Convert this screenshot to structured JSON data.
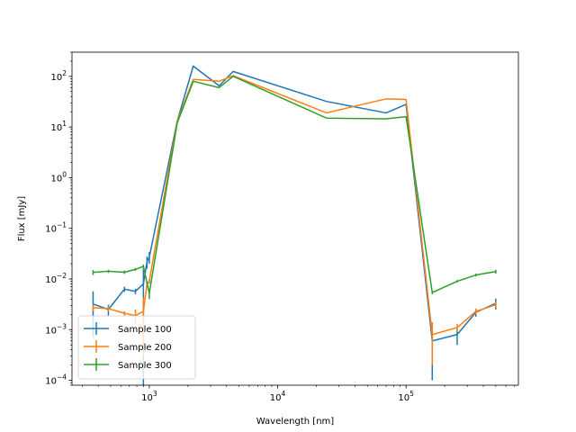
{
  "chart_data": {
    "type": "line",
    "title": "",
    "xlabel": "Wavelength [nm]",
    "ylabel": "Flux [mJy]",
    "xscale": "log",
    "yscale": "log",
    "xlim": [
      250,
      750000
    ],
    "ylim": [
      8e-05,
      300
    ],
    "x_ticks": [
      {
        "value": 1000,
        "base": "10",
        "exp": "3"
      },
      {
        "value": 10000,
        "base": "10",
        "exp": "4"
      },
      {
        "value": 100000,
        "base": "10",
        "exp": "5"
      }
    ],
    "y_ticks": [
      {
        "value": 0.0001,
        "base": "10",
        "exp": "−4"
      },
      {
        "value": 0.001,
        "base": "10",
        "exp": "−3"
      },
      {
        "value": 0.01,
        "base": "10",
        "exp": "−2"
      },
      {
        "value": 0.1,
        "base": "10",
        "exp": "−1"
      },
      {
        "value": 1,
        "base": "10",
        "exp": "0"
      },
      {
        "value": 10,
        "base": "10",
        "exp": "1"
      },
      {
        "value": 100,
        "base": "10",
        "exp": "2"
      }
    ],
    "grid": false,
    "legend_position": "lower-left",
    "series": [
      {
        "name": "Sample 100",
        "color": "#1f77b4",
        "x": [
          365,
          480,
          640,
          780,
          900,
          960,
          1000,
          1650,
          2200,
          3500,
          4500,
          24000,
          70000,
          100000,
          160000,
          250000,
          350000,
          500000
        ],
        "y": [
          0.0032,
          0.0025,
          0.0063,
          0.0057,
          0.008,
          0.022,
          0.027,
          13,
          160,
          65,
          125,
          32,
          19,
          28,
          0.0006,
          0.0008,
          0.0022,
          0.0033
        ],
        "err": [
          0.0025,
          0.0006,
          0.0007,
          0.0007,
          0.008,
          0.006,
          0.007,
          0,
          0,
          0,
          0,
          0,
          0,
          0,
          0.0005,
          0.0003,
          0.0004,
          0.0008
        ]
      },
      {
        "name": "Sample 200",
        "color": "#ff7f0e",
        "x": [
          365,
          480,
          640,
          780,
          900,
          960,
          1000,
          1650,
          2200,
          3500,
          4500,
          24000,
          70000,
          100000,
          160000,
          250000,
          350000,
          500000
        ],
        "y": [
          0.0027,
          0.0026,
          0.0021,
          0.0019,
          0.0023,
          0.008,
          0.009,
          13,
          87,
          80,
          103,
          19,
          36,
          35,
          0.0008,
          0.0011,
          0.0023,
          0.0031
        ],
        "err": [
          0.0004,
          0.0003,
          0.0002,
          0.0006,
          0.002,
          0.001,
          0.001,
          0,
          0,
          0,
          0,
          0,
          0,
          0,
          0.0006,
          0.0002,
          0.0003,
          0.0004
        ]
      },
      {
        "name": "Sample 300",
        "color": "#2ca02c",
        "x": [
          365,
          480,
          640,
          780,
          900,
          1000,
          1650,
          2200,
          3500,
          4500,
          24000,
          70000,
          100000,
          160000,
          250000,
          350000,
          500000
        ],
        "y": [
          0.0135,
          0.0142,
          0.0136,
          0.0155,
          0.0178,
          0.0052,
          12,
          80,
          60,
          100,
          15,
          14.5,
          16,
          0.0054,
          0.009,
          0.012,
          0.014
        ],
        "err": [
          0.0015,
          0.001,
          0.001,
          0.001,
          0.0015,
          0.0012,
          0,
          0,
          0,
          0,
          0,
          0,
          0,
          0.0004,
          0.0005,
          0.0008,
          0.0012
        ]
      }
    ]
  }
}
